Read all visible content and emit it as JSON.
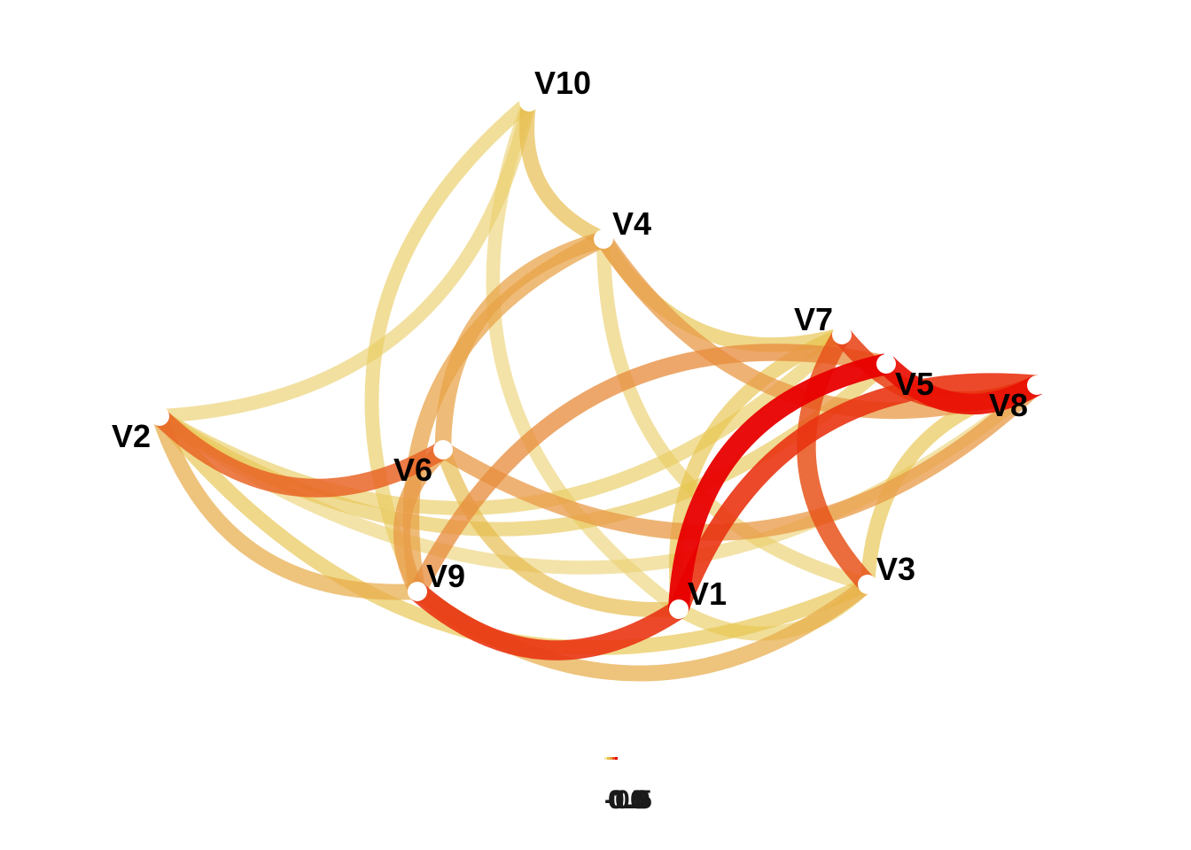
{
  "network": {
    "nodes": [
      "V1",
      "V2",
      "V3",
      "V4",
      "V5",
      "V6",
      "V7",
      "V8",
      "V9",
      "V10"
    ],
    "edges": [
      {
        "source": "V2",
        "target": "V10",
        "strength": 0.18
      },
      {
        "source": "V2",
        "target": "V7",
        "strength": 0.2
      },
      {
        "source": "V2",
        "target": "V5",
        "strength": 0.22
      },
      {
        "source": "V2",
        "target": "V8",
        "strength": 0.15
      },
      {
        "source": "V2",
        "target": "V6",
        "strength": 0.7
      },
      {
        "source": "V2",
        "target": "V9",
        "strength": 0.4
      },
      {
        "source": "V2",
        "target": "V3",
        "strength": 0.25
      },
      {
        "source": "V10",
        "target": "V4",
        "strength": 0.3
      },
      {
        "source": "V10",
        "target": "V9",
        "strength": 0.2
      },
      {
        "source": "V10",
        "target": "V1",
        "strength": 0.15
      },
      {
        "source": "V4",
        "target": "V6",
        "strength": 0.45
      },
      {
        "source": "V4",
        "target": "V8",
        "strength": 0.5
      },
      {
        "source": "V4",
        "target": "V7",
        "strength": 0.25
      },
      {
        "source": "V4",
        "target": "V3",
        "strength": 0.18
      },
      {
        "source": "V4",
        "target": "V9",
        "strength": 0.45
      },
      {
        "source": "V6",
        "target": "V8",
        "strength": 0.5
      },
      {
        "source": "V6",
        "target": "V9",
        "strength": 0.5
      },
      {
        "source": "V6",
        "target": "V1",
        "strength": 0.3
      },
      {
        "source": "V7",
        "target": "V8",
        "strength": 0.8
      },
      {
        "source": "V7",
        "target": "V3",
        "strength": 0.75
      },
      {
        "source": "V7",
        "target": "V1",
        "strength": 0.25
      },
      {
        "source": "V5",
        "target": "V8",
        "strength": 0.95
      },
      {
        "source": "V5",
        "target": "V1",
        "strength": 1.0
      },
      {
        "source": "V5",
        "target": "V9",
        "strength": 0.55
      },
      {
        "source": "V8",
        "target": "V3",
        "strength": 0.25
      },
      {
        "source": "V8",
        "target": "V1",
        "strength": 0.85
      },
      {
        "source": "V9",
        "target": "V1",
        "strength": 0.85
      },
      {
        "source": "V9",
        "target": "V3",
        "strength": 0.4
      },
      {
        "source": "V1",
        "target": "V3",
        "strength": 0.2
      }
    ]
  },
  "legend": {
    "tick_labels": [
      "-1.0",
      "-0.5",
      "0.0",
      "0.5",
      "1.0"
    ],
    "colors": [
      "#f5e7b0",
      "#e6c34a",
      "#e89a45",
      "#e8541b",
      "#e80000"
    ]
  }
}
